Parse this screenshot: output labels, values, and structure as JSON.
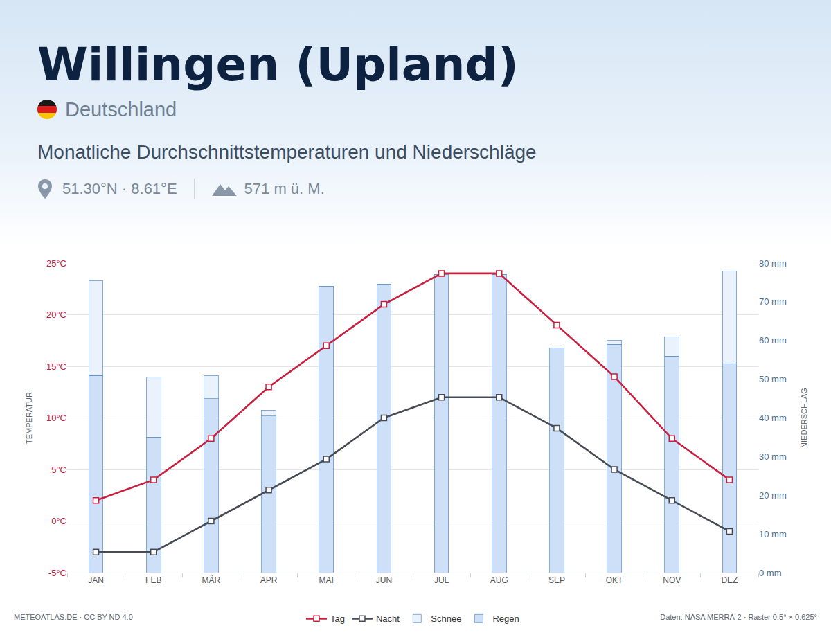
{
  "chart_data": {
    "type": "bar",
    "title": "Willingen (Upland)",
    "country": "Deutschland",
    "subtitle": "Monatliche Durchschnittstemperaturen und Niederschläge",
    "location": "51.30°N · 8.61°E",
    "elevation": "571 m ü. M.",
    "credit": "METEOATLAS.DE · CC BY-ND 4.0",
    "source": "Daten: NASA MERRA-2 · Raster 0.5° × 0.625°",
    "ylabel": "TEMPERATUR",
    "y2label": "NIEDERSCHLAG",
    "categories": [
      "JAN",
      "FEB",
      "MÄR",
      "APR",
      "MAI",
      "JUN",
      "JUL",
      "AUG",
      "SEP",
      "OKT",
      "NOV",
      "DEZ"
    ],
    "series": [
      {
        "name": "Tag",
        "type": "line",
        "axis": "y",
        "color": "#c8203f",
        "marker": "square",
        "values": [
          2,
          4,
          8,
          13,
          17,
          21,
          24,
          24,
          19,
          14,
          8,
          4
        ]
      },
      {
        "name": "Nacht",
        "type": "line",
        "axis": "y",
        "color": "#474c54",
        "marker": "square",
        "values": [
          -3,
          -3,
          0,
          3,
          6,
          10,
          12,
          12,
          9,
          5,
          2,
          -1
        ]
      },
      {
        "name": "Schnee",
        "type": "bar",
        "axis": "y2",
        "color": "#eaf3fd",
        "values": [
          24.5,
          15.5,
          6,
          1.5,
          0,
          0,
          0,
          0,
          0,
          1,
          5,
          24
        ]
      },
      {
        "name": "Regen",
        "type": "bar",
        "axis": "y2",
        "color": "#cde0f8",
        "values": [
          51,
          35,
          45,
          40.5,
          74,
          74.5,
          77,
          77,
          58,
          59,
          56,
          54
        ]
      }
    ],
    "stacked": true,
    "grid": true,
    "legend": "bottom",
    "ylim": [
      -5,
      25
    ],
    "yticks": [
      {
        "value": -5,
        "label": "-5°C"
      },
      {
        "value": 0,
        "label": "0°C"
      },
      {
        "value": 5,
        "label": "5°C"
      },
      {
        "value": 10,
        "label": "10°C"
      },
      {
        "value": 15,
        "label": "15°C"
      },
      {
        "value": 20,
        "label": "20°C"
      },
      {
        "value": 25,
        "label": "25°C"
      }
    ],
    "y2lim": [
      0,
      80
    ],
    "y2ticks": [
      {
        "value": 0,
        "label": "0 mm"
      },
      {
        "value": 10,
        "label": "10 mm"
      },
      {
        "value": 20,
        "label": "20 mm"
      },
      {
        "value": 30,
        "label": "30 mm"
      },
      {
        "value": 40,
        "label": "40 mm"
      },
      {
        "value": 50,
        "label": "50 mm"
      },
      {
        "value": 60,
        "label": "60 mm"
      },
      {
        "value": 70,
        "label": "70 mm"
      },
      {
        "value": 80,
        "label": "80 mm"
      }
    ]
  }
}
